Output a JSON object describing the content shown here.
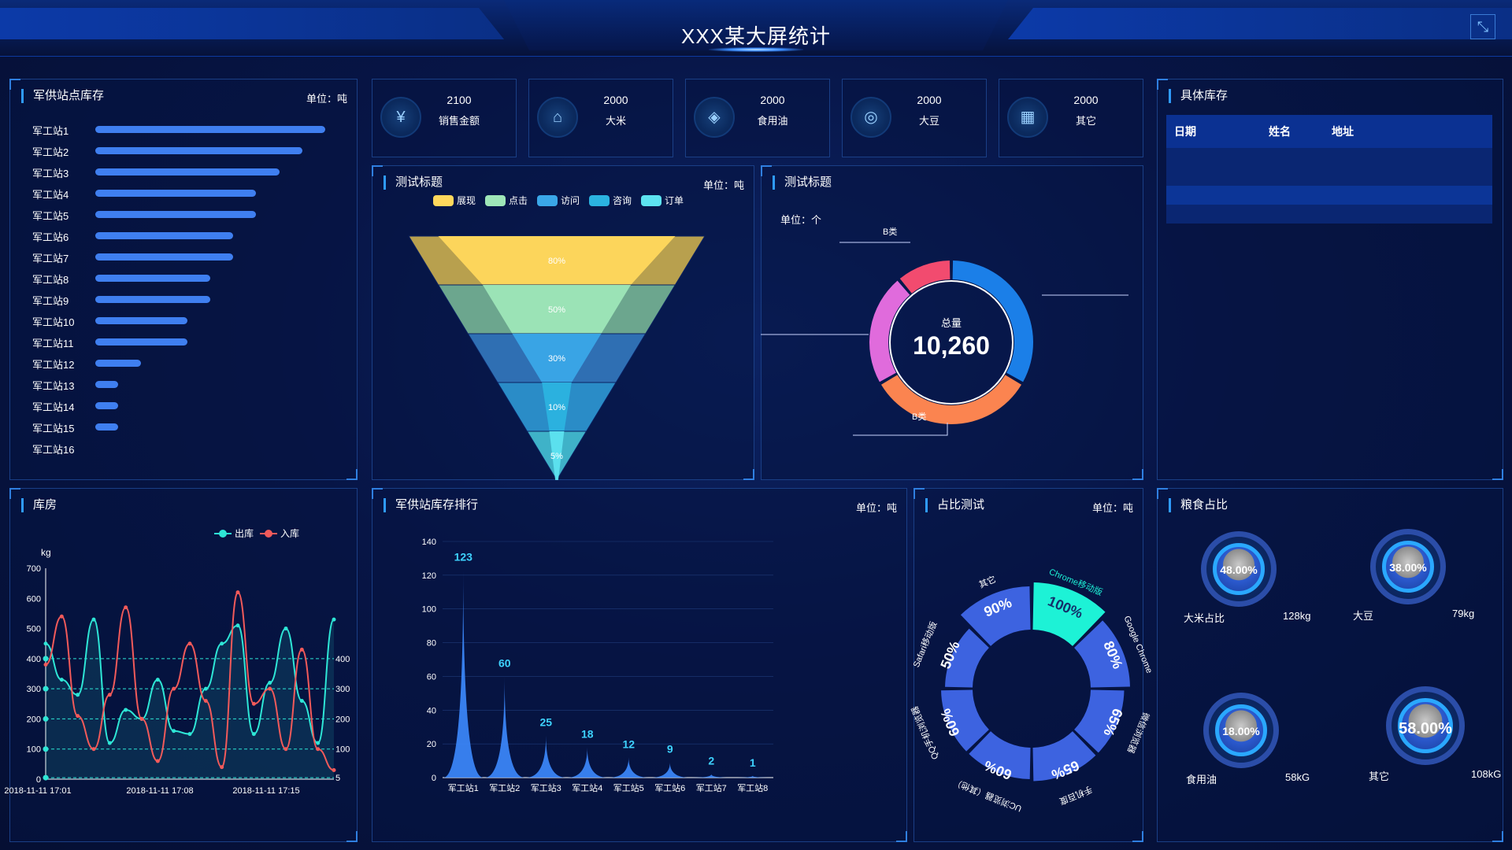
{
  "header": {
    "title": "XXX某大屏统计",
    "fullscreen_icon": "compress-icon"
  },
  "stock_panel": {
    "title": "军供站点库存",
    "unit": "单位：吨"
  },
  "chart_data": [
    {
      "type": "bar",
      "orientation": "horizontal",
      "title": "军供站点库存",
      "categories": [
        "军工站1",
        "军工站2",
        "军工站3",
        "军工站4",
        "军工站5",
        "军工站6",
        "军工站7",
        "军工站8",
        "军工站9",
        "军工站10",
        "军工站11",
        "军工站12",
        "军工站13",
        "军工站14",
        "军工站15",
        "军工站16"
      ],
      "values": [
        100,
        90,
        80,
        70,
        70,
        60,
        60,
        50,
        50,
        40,
        40,
        20,
        10,
        10,
        10,
        0
      ],
      "xlim": [
        0,
        100
      ]
    },
    {
      "type": "funnel",
      "title": "测试标题",
      "unit": "单位：吨",
      "categories": [
        "展现",
        "点击",
        "访问",
        "咨询",
        "订单"
      ],
      "values": [
        80,
        50,
        30,
        10,
        5
      ],
      "colors": [
        "#ffd85c",
        "#9ee6b8",
        "#3aa7e8",
        "#2bb3e0",
        "#5de3f0"
      ]
    },
    {
      "type": "pie",
      "title": "测试标题",
      "unit": "单位：个",
      "center_label": "总量",
      "total": "10,260",
      "slices": [
        {
          "value": 30,
          "color": "#1b7fe8"
        },
        {
          "value": 30,
          "color": "#fb8450",
          "name": "B类"
        },
        {
          "value": 20,
          "color": "#e06bdc"
        },
        {
          "value": 10,
          "color": "#f24b6f",
          "name": "B类"
        }
      ]
    },
    {
      "type": "line",
      "title": "库房",
      "ylabel": "kg",
      "ylim": [
        0,
        700
      ],
      "yticks": [
        0,
        100,
        200,
        300,
        400,
        500,
        600,
        700
      ],
      "xlabels": [
        "2018-11-11 17:01",
        "2018-11-11 17:08",
        "2018-11-11 17:15"
      ],
      "series": [
        {
          "name": "出库",
          "color": "#2ee6d6",
          "values": [
            450,
            330,
            280,
            530,
            120,
            230,
            200,
            330,
            160,
            150,
            300,
            450,
            510,
            150,
            320,
            500,
            260,
            120,
            530
          ]
        },
        {
          "name": "入库",
          "color": "#f25a5a",
          "values": [
            380,
            540,
            210,
            100,
            280,
            570,
            200,
            60,
            300,
            450,
            260,
            40,
            620,
            250,
            300,
            100,
            430,
            100,
            30
          ]
        }
      ],
      "markLines": [
        {
          "value": 400,
          "label": "400"
        },
        {
          "value": 300,
          "label": "300"
        },
        {
          "value": 200,
          "label": "200"
        },
        {
          "value": 100,
          "label": "100"
        },
        {
          "value": 5,
          "label": "5"
        }
      ]
    },
    {
      "type": "area",
      "title": "军供站库存排行",
      "unit": "单位：吨",
      "categories": [
        "军工站1",
        "军工站2",
        "军工站3",
        "军工站4",
        "军工站5",
        "军工站6",
        "军工站7",
        "军工站8"
      ],
      "values": [
        123,
        60,
        25,
        18,
        12,
        9,
        2,
        1
      ],
      "ylim": [
        0,
        140
      ],
      "yticks": [
        0,
        20,
        40,
        60,
        80,
        100,
        120,
        140
      ]
    },
    {
      "type": "polar-bar",
      "title": "占比测试",
      "unit": "单位：吨",
      "categories": [
        "Chrome移动版",
        "Google Chrome",
        "微信浏览器",
        "手机百度",
        "UC浏览器（其他）",
        "QQ手机浏览器",
        "Safari移动版",
        "其它"
      ],
      "values": [
        100,
        80,
        65,
        65,
        60,
        60,
        50,
        90
      ],
      "labels": [
        "100%",
        "80%",
        "65%",
        "65%",
        "60%",
        "60%",
        "50%",
        "90%"
      ]
    },
    {
      "type": "gauge",
      "title": "粮食占比",
      "items": [
        {
          "label": "大米占比",
          "percent": "48.00%",
          "weight": "128kg"
        },
        {
          "label": "大豆",
          "percent": "38.00%",
          "weight": "79kg"
        },
        {
          "label": "食用油",
          "percent": "18.00%",
          "weight": "58kG"
        },
        {
          "label": "其它",
          "percent": "58.00%",
          "weight": "108kG"
        }
      ]
    }
  ],
  "kpis": [
    {
      "value": "2100",
      "label": "销售金额",
      "icon": "money-bag-icon"
    },
    {
      "value": "2000",
      "label": "大米",
      "icon": "rice-icon"
    },
    {
      "value": "2000",
      "label": "食用油",
      "icon": "oil-drop-icon"
    },
    {
      "value": "2000",
      "label": "大豆",
      "icon": "soybean-icon"
    },
    {
      "value": "2000",
      "label": "其它",
      "icon": "grid-icon"
    }
  ],
  "funnel_panel": {
    "title": "测试标题",
    "unit": "单位：吨",
    "legend": [
      "展现",
      "点击",
      "访问",
      "咨询",
      "订单"
    ],
    "pct": [
      "80%",
      "50%",
      "30%",
      "10%",
      "5%"
    ]
  },
  "pie_panel": {
    "title": "测试标题",
    "unit": "单位：个",
    "center_title": "总量",
    "center_value": "10,260",
    "label_top": "B类",
    "label_bottom": "B类"
  },
  "detail_panel": {
    "title": "具体库存",
    "columns": [
      "日期",
      "姓名",
      "地址"
    ]
  },
  "line_panel": {
    "title": "库房",
    "legend": [
      "出库",
      "入库"
    ],
    "ylabel": "kg"
  },
  "rank_panel": {
    "title": "军供站库存排行",
    "unit": "单位：吨"
  },
  "polar_panel": {
    "title": "占比测试",
    "unit": "单位：吨"
  },
  "gauge_panel": {
    "title": "粮食占比"
  }
}
